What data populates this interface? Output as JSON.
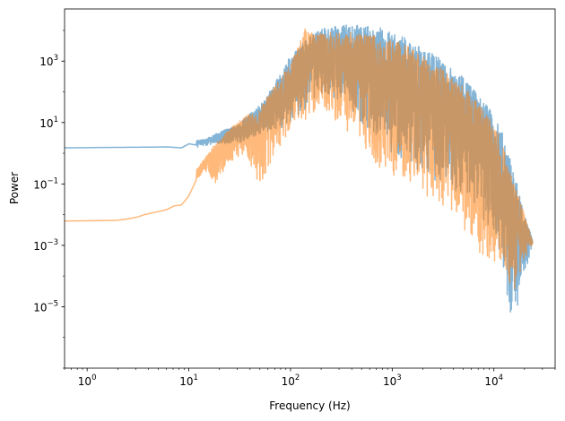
{
  "chart_data": {
    "type": "line",
    "title": "",
    "xlabel": "Frequency (Hz)",
    "ylabel": "Power",
    "xscale": "log",
    "yscale": "log",
    "xlim": [
      0.6,
      40000
    ],
    "ylim": [
      1e-07,
      50000
    ],
    "grid": false,
    "legend": "none",
    "x_ticks": [
      {
        "value": 1,
        "base": "10",
        "exp": "0"
      },
      {
        "value": 10,
        "base": "10",
        "exp": "1"
      },
      {
        "value": 100,
        "base": "10",
        "exp": "2"
      },
      {
        "value": 1000,
        "base": "10",
        "exp": "3"
      },
      {
        "value": 10000,
        "base": "10",
        "exp": "4"
      }
    ],
    "y_ticks": [
      {
        "value": 1e-05,
        "base": "10",
        "exp": "−5"
      },
      {
        "value": 0.001,
        "base": "10",
        "exp": "−3"
      },
      {
        "value": 0.1,
        "base": "10",
        "exp": "−1"
      },
      {
        "value": 10,
        "base": "10",
        "exp": "1"
      },
      {
        "value": 1000,
        "base": "10",
        "exp": "3"
      }
    ],
    "series": [
      {
        "color": "#1f77b4",
        "opacity": 0.55,
        "envelope": [
          {
            "x": 0.6,
            "hi": 1.5,
            "lo": 1.5
          },
          {
            "x": 6,
            "hi": 1.6,
            "lo": 1.6
          },
          {
            "x": 9,
            "hi": 1.8,
            "lo": 1.3
          },
          {
            "x": 12,
            "hi": 2.6,
            "lo": 1.5
          },
          {
            "x": 15,
            "hi": 3,
            "lo": 1.8
          },
          {
            "x": 20,
            "hi": 5,
            "lo": 2
          },
          {
            "x": 30,
            "hi": 8,
            "lo": 2
          },
          {
            "x": 40,
            "hi": 20,
            "lo": 3
          },
          {
            "x": 55,
            "hi": 50,
            "lo": 5
          },
          {
            "x": 75,
            "hi": 300,
            "lo": 5
          },
          {
            "x": 100,
            "hi": 1500,
            "lo": 10
          },
          {
            "x": 150,
            "hi": 6000,
            "lo": 30
          },
          {
            "x": 200,
            "hi": 12000,
            "lo": 80
          },
          {
            "x": 300,
            "hi": 15000,
            "lo": 50
          },
          {
            "x": 500,
            "hi": 15000,
            "lo": 10
          },
          {
            "x": 800,
            "hi": 12000,
            "lo": 2
          },
          {
            "x": 1000,
            "hi": 8000,
            "lo": 1
          },
          {
            "x": 1500,
            "hi": 5000,
            "lo": 0.5
          },
          {
            "x": 2000,
            "hi": 3000,
            "lo": 0.2
          },
          {
            "x": 3000,
            "hi": 1200,
            "lo": 0.1
          },
          {
            "x": 5000,
            "hi": 300,
            "lo": 0.03
          },
          {
            "x": 7000,
            "hi": 80,
            "lo": 0.01
          },
          {
            "x": 9000,
            "hi": 30,
            "lo": 0.003
          },
          {
            "x": 12000,
            "hi": 5,
            "lo": 0.0003
          },
          {
            "x": 14000,
            "hi": 1,
            "lo": 3e-06
          },
          {
            "x": 17000,
            "hi": 0.1,
            "lo": 1e-05
          },
          {
            "x": 20000,
            "hi": 0.01,
            "lo": 0.0001
          },
          {
            "x": 24000,
            "hi": 0.0015,
            "lo": 0.0012
          }
        ]
      },
      {
        "color": "#ff7f0e",
        "opacity": 0.55,
        "envelope": [
          {
            "x": 0.6,
            "hi": 0.0062,
            "lo": 0.0062
          },
          {
            "x": 2,
            "hi": 0.0065,
            "lo": 0.0065
          },
          {
            "x": 3,
            "hi": 0.008,
            "lo": 0.008
          },
          {
            "x": 4,
            "hi": 0.011,
            "lo": 0.011
          },
          {
            "x": 5,
            "hi": 0.012,
            "lo": 0.012
          },
          {
            "x": 6,
            "hi": 0.02,
            "lo": 0.014
          },
          {
            "x": 8,
            "hi": 0.025,
            "lo": 0.015
          },
          {
            "x": 10,
            "hi": 0.05,
            "lo": 0.02
          },
          {
            "x": 12,
            "hi": 0.3,
            "lo": 0.1
          },
          {
            "x": 14,
            "hi": 0.6,
            "lo": 0.3
          },
          {
            "x": 18,
            "hi": 2,
            "lo": 0.1
          },
          {
            "x": 25,
            "hi": 6,
            "lo": 0.5
          },
          {
            "x": 35,
            "hi": 15,
            "lo": 1
          },
          {
            "x": 50,
            "hi": 30,
            "lo": 0.08
          },
          {
            "x": 70,
            "hi": 150,
            "lo": 1
          },
          {
            "x": 100,
            "hi": 800,
            "lo": 5
          },
          {
            "x": 140,
            "hi": 12000,
            "lo": 10
          },
          {
            "x": 200,
            "hi": 8000,
            "lo": 20
          },
          {
            "x": 300,
            "hi": 9000,
            "lo": 10
          },
          {
            "x": 500,
            "hi": 8000,
            "lo": 1
          },
          {
            "x": 800,
            "hi": 6000,
            "lo": 0.3
          },
          {
            "x": 1000,
            "hi": 5000,
            "lo": 0.2
          },
          {
            "x": 1500,
            "hi": 3000,
            "lo": 0.1
          },
          {
            "x": 2000,
            "hi": 1500,
            "lo": 0.05
          },
          {
            "x": 3000,
            "hi": 600,
            "lo": 0.02
          },
          {
            "x": 5000,
            "hi": 150,
            "lo": 0.003
          },
          {
            "x": 7000,
            "hi": 50,
            "lo": 0.0005
          },
          {
            "x": 10000,
            "hi": 10,
            "lo": 0.0002
          },
          {
            "x": 13000,
            "hi": 1,
            "lo": 3e-05
          },
          {
            "x": 16000,
            "hi": 0.1,
            "lo": 2e-05
          },
          {
            "x": 20000,
            "hi": 0.01,
            "lo": 0.0003
          },
          {
            "x": 24000,
            "hi": 0.0014,
            "lo": 0.0011
          }
        ]
      }
    ]
  }
}
